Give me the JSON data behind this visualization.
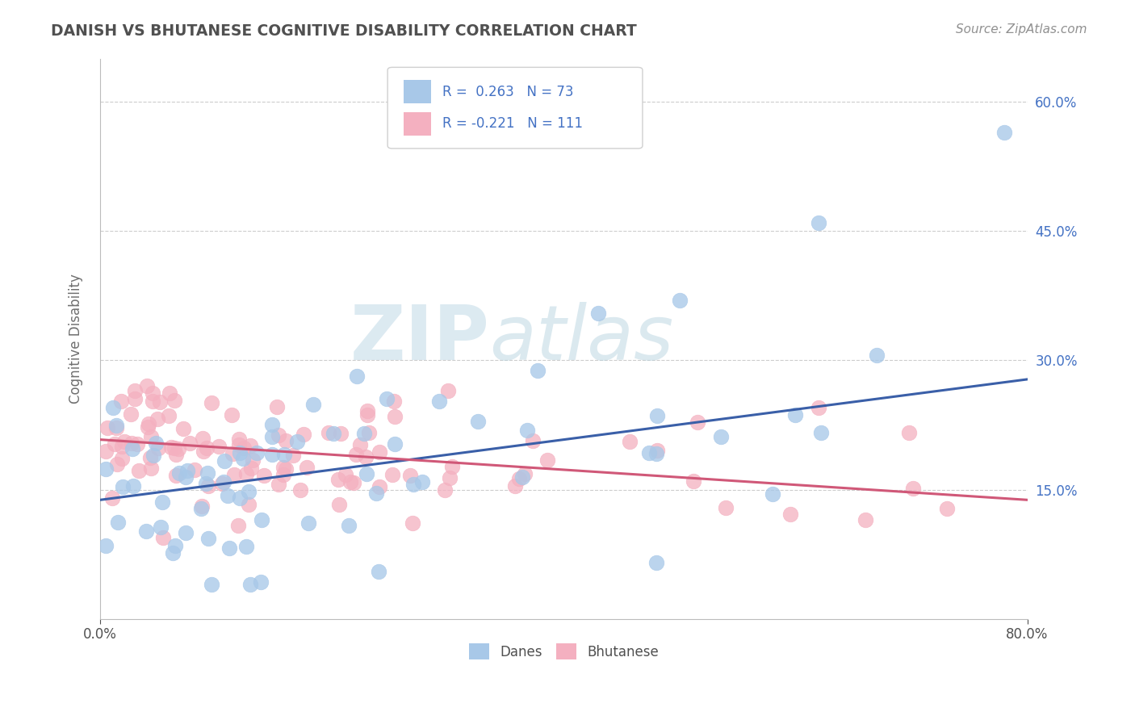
{
  "title": "DANISH VS BHUTANESE COGNITIVE DISABILITY CORRELATION CHART",
  "source": "Source: ZipAtlas.com",
  "ylabel": "Cognitive Disability",
  "x_min": 0.0,
  "x_max": 0.8,
  "y_min": 0.0,
  "y_max": 0.65,
  "y_ticks": [
    0.15,
    0.3,
    0.45,
    0.6
  ],
  "y_tick_labels": [
    "15.0%",
    "30.0%",
    "45.0%",
    "60.0%"
  ],
  "x_ticks": [
    0.0,
    0.8
  ],
  "x_tick_labels": [
    "0.0%",
    "80.0%"
  ],
  "danes_R": 0.263,
  "danes_N": 73,
  "bhutanese_R": -0.221,
  "bhutanese_N": 111,
  "danes_color": "#a8c8e8",
  "danes_line_color": "#3a5fa8",
  "bhutanese_color": "#f4b0c0",
  "bhutanese_line_color": "#d05878",
  "legend_danes_box": "#a8c8e8",
  "legend_bhutanese_box": "#f4b0c0",
  "danes_line_start_y": 0.138,
  "danes_line_end_y": 0.278,
  "bhut_line_start_y": 0.208,
  "bhut_line_end_y": 0.138,
  "watermark_zip_color": "#c8dce8",
  "watermark_atlas_color": "#b8d0d8",
  "background_color": "#ffffff",
  "grid_color": "#c8c8c8",
  "title_color": "#505050",
  "axis_label_color": "#707070",
  "tick_color": "#505050",
  "source_color": "#909090",
  "right_tick_color": "#4472c4"
}
